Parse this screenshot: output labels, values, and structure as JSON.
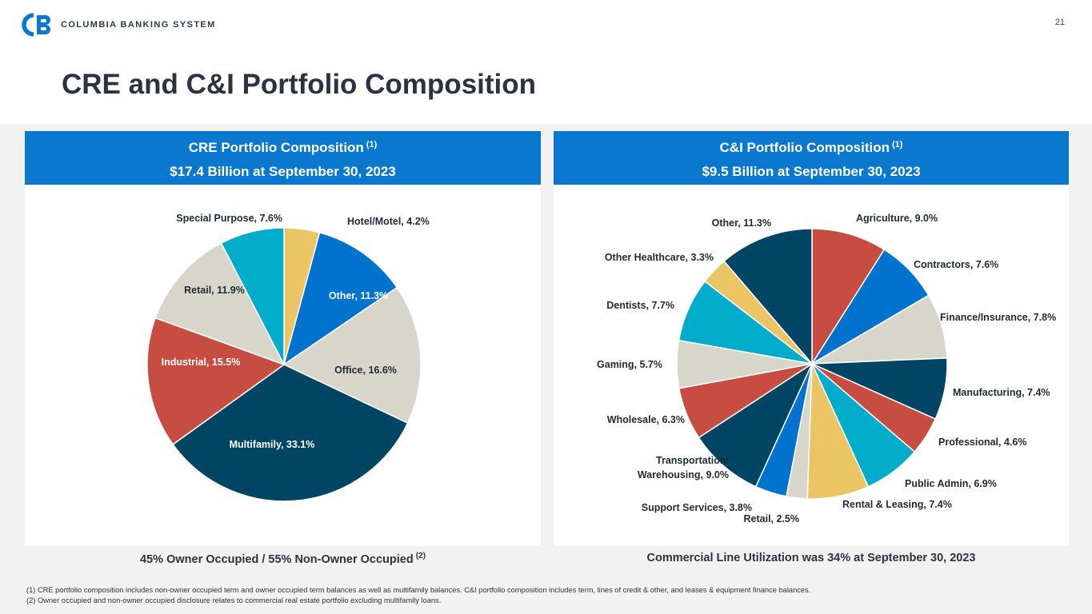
{
  "logo_text": "COLUMBIA BANKING SYSTEM",
  "page_number": "21",
  "title": "CRE and C&I Portfolio Composition",
  "colors": {
    "header_blue": "#0b78d0",
    "navy": "#004563",
    "red": "#c74c41",
    "beige": "#d8d5cb",
    "teal": "#00acc9",
    "gold": "#ebc464",
    "blue": "#0073cf"
  },
  "left_panel": {
    "header_line1": "CRE Portfolio Composition",
    "header_sup": "(1)",
    "header_line2": "$17.4 Billion at September 30, 2023",
    "footer": "45% Owner Occupied / 55% Non-Owner Occupied",
    "footer_sup": "(2)"
  },
  "right_panel": {
    "header_line1": "C&I Portfolio Composition",
    "header_sup": "(1)",
    "header_line2": "$9.5 Billion at September 30, 2023",
    "footer": "Commercial Line Utilization was 34% at September 30, 2023"
  },
  "footnotes": [
    "(1)  CRE portfolio composition includes non-owner occupied term and owner occupied term balances as well as multifamily balances. C&I portfolio composition includes term, lines of credit & other, and leases & equipment finance balances.",
    "(2)  Owner occupied and non-owner occupied disclosure relates to commercial real estate portfolio excluding multifamily loans."
  ],
  "chart_data": [
    {
      "type": "pie",
      "title": "CRE Portfolio Composition",
      "slices": [
        {
          "label": "Hotel/Motel, 4.2%",
          "value": 4.2,
          "color": "#ebc464"
        },
        {
          "label": "Other, 11.3%",
          "value": 11.3,
          "color": "#0073cf"
        },
        {
          "label": "Office, 16.6%",
          "value": 16.6,
          "color": "#d8d5cb"
        },
        {
          "label": "Multifamily, 33.1%",
          "value": 33.1,
          "color": "#004563"
        },
        {
          "label": "Industrial, 15.5%",
          "value": 15.5,
          "color": "#c74c41"
        },
        {
          "label": "Retail, 11.9%",
          "value": 11.9,
          "color": "#d8d5cb"
        },
        {
          "label": "Special Purpose, 7.6%",
          "value": 7.6,
          "color": "#00acc9"
        }
      ]
    },
    {
      "type": "pie",
      "title": "C&I Portfolio Composition",
      "slices": [
        {
          "label": "Agriculture, 9.0%",
          "value": 9.0,
          "color": "#c74c41"
        },
        {
          "label": "Contractors, 7.6%",
          "value": 7.6,
          "color": "#0073cf"
        },
        {
          "label": "Finance/Insurance, 7.8%",
          "value": 7.8,
          "color": "#d8d5cb"
        },
        {
          "label": "Manufacturing, 7.4%",
          "value": 7.4,
          "color": "#004563"
        },
        {
          "label": "Professional, 4.6%",
          "value": 4.6,
          "color": "#c74c41"
        },
        {
          "label": "Public Admin, 6.9%",
          "value": 6.9,
          "color": "#00acc9"
        },
        {
          "label": "Rental & Leasing, 7.4%",
          "value": 7.4,
          "color": "#ebc464"
        },
        {
          "label": "Retail, 2.5%",
          "value": 2.5,
          "color": "#d8d5cb"
        },
        {
          "label": "Support Services, 3.8%",
          "value": 3.8,
          "color": "#0073cf"
        },
        {
          "label": "Transportation/ Warehousing, 9.0%",
          "value": 9.0,
          "color": "#004563"
        },
        {
          "label": "Wholesale, 6.3%",
          "value": 6.3,
          "color": "#c74c41"
        },
        {
          "label": "Gaming, 5.7%",
          "value": 5.7,
          "color": "#d8d5cb"
        },
        {
          "label": "Dentists, 7.7%",
          "value": 7.7,
          "color": "#00acc9"
        },
        {
          "label": "Other Healthcare, 3.3%",
          "value": 3.3,
          "color": "#ebc464"
        },
        {
          "label": "Other, 11.3%",
          "value": 11.3,
          "color": "#004563"
        }
      ]
    }
  ]
}
